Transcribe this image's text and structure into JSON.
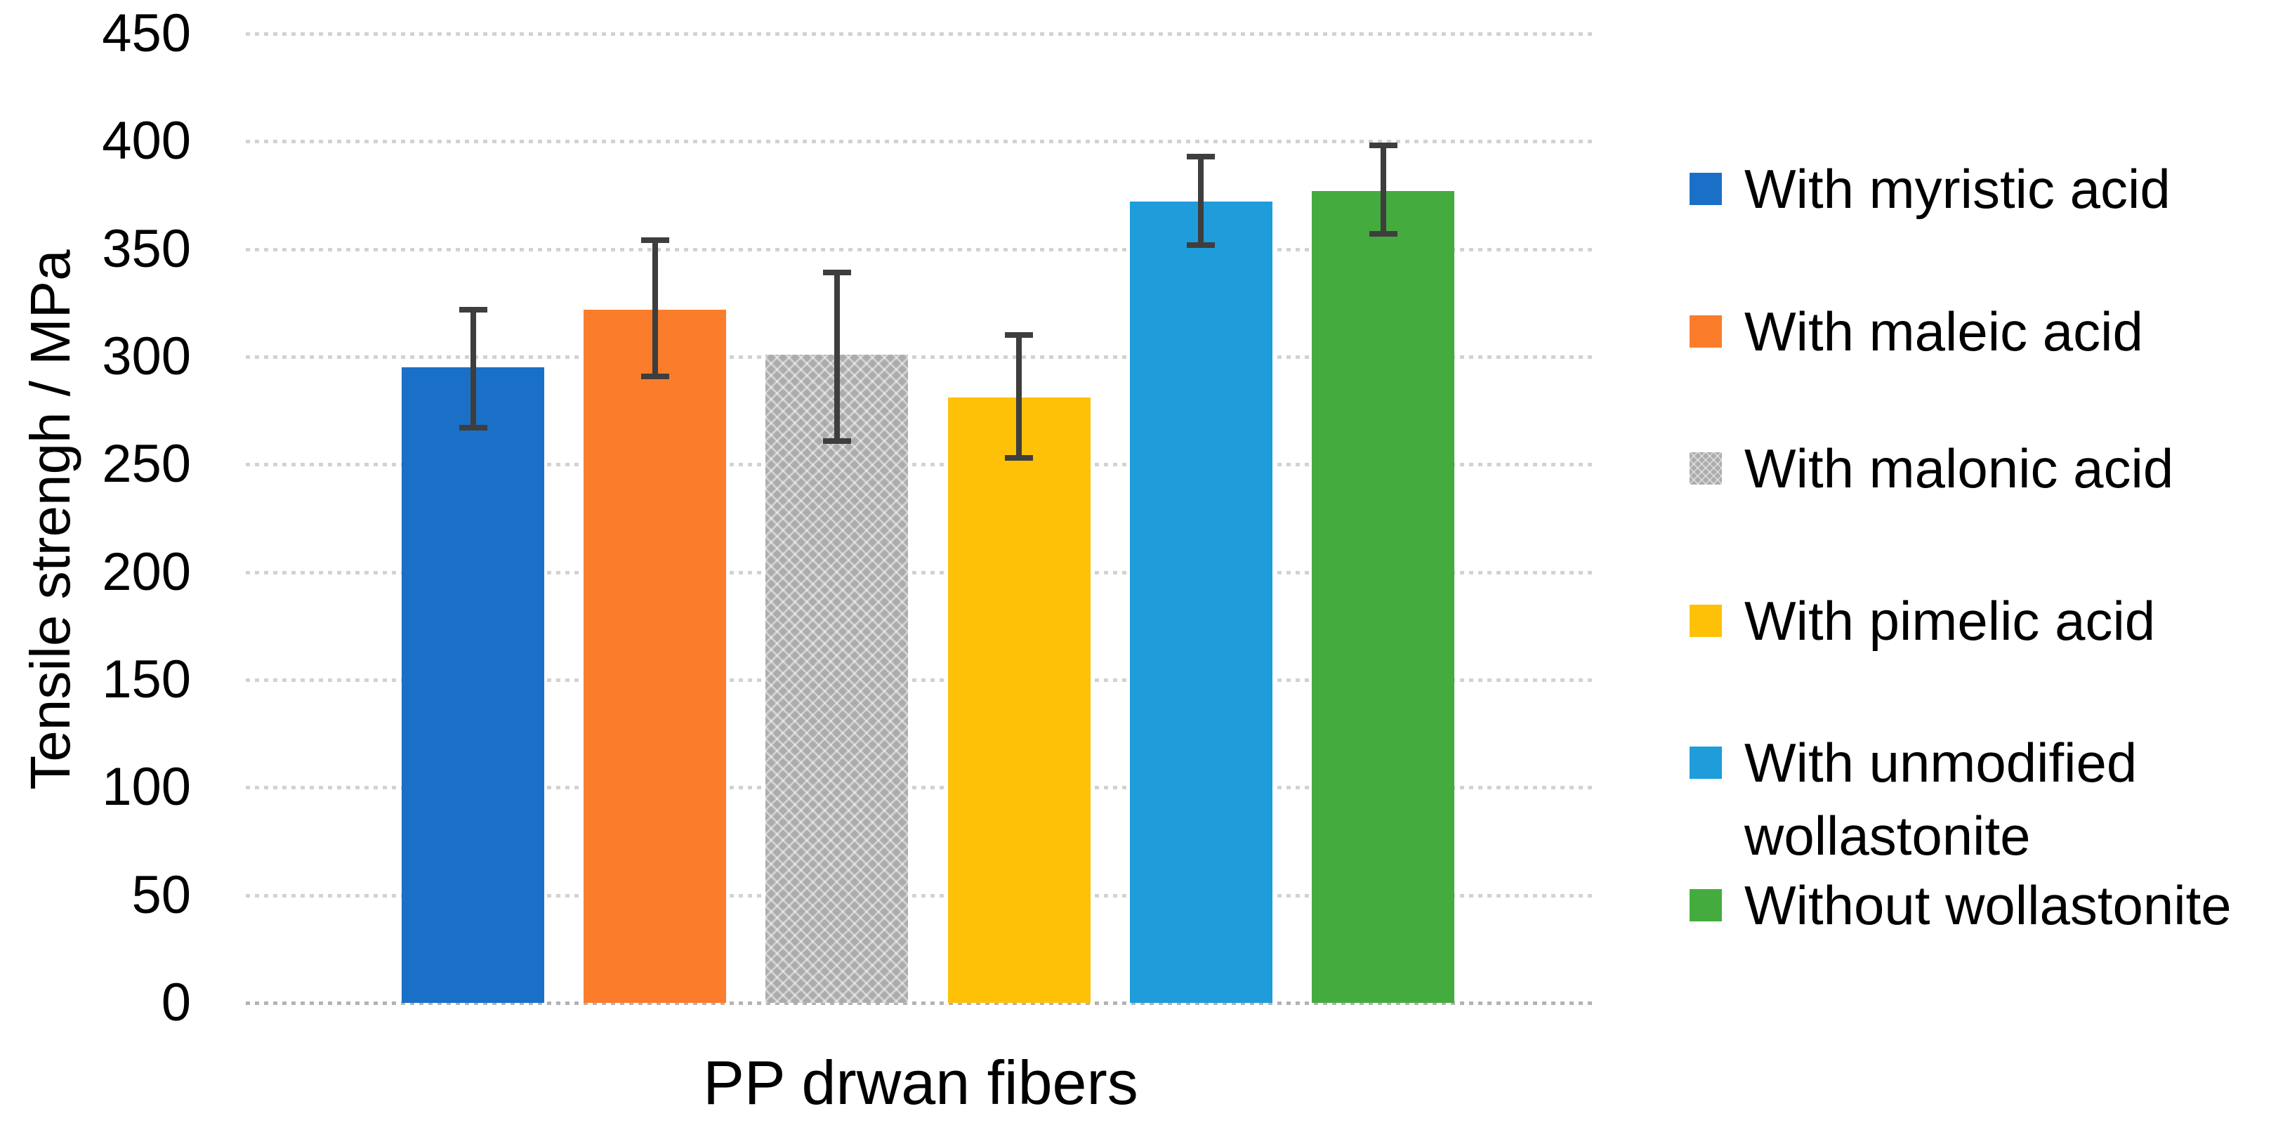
{
  "chart_data": {
    "type": "bar",
    "title": "",
    "xlabel": "PP drwan fibers",
    "ylabel": "Tensile strengh / MPa",
    "ylim": [
      0,
      450
    ],
    "yticks": [
      0,
      50,
      100,
      150,
      200,
      250,
      300,
      350,
      400,
      450
    ],
    "grid": "horizontal-dotted",
    "legend_position": "right",
    "error_bar_color": "#3e3e3e",
    "series": [
      {
        "name": "With myristic acid",
        "color": "#1a70c7",
        "value": 295,
        "error_plus": 27,
        "error_minus": 28
      },
      {
        "name": "With maleic acid",
        "color": "#fb7d2b",
        "value": 322,
        "error_plus": 32,
        "error_minus": 31
      },
      {
        "name": "With malonic acid",
        "color": "#acacac",
        "value": 301,
        "error_plus": 38,
        "error_minus": 40,
        "pattern": "zigzag"
      },
      {
        "name": "With pimelic acid",
        "color": "#fec107",
        "value": 281,
        "error_plus": 29,
        "error_minus": 28
      },
      {
        "name": "With unmodified wollastonite",
        "color": "#1e9dda",
        "value": 372,
        "error_plus": 21,
        "error_minus": 20,
        "legend_lines": [
          "With unmodified",
          "wollastonite"
        ]
      },
      {
        "name": "Without wollastonite",
        "color": "#44ac3e",
        "value": 377,
        "error_plus": 21,
        "error_minus": 20
      }
    ]
  }
}
